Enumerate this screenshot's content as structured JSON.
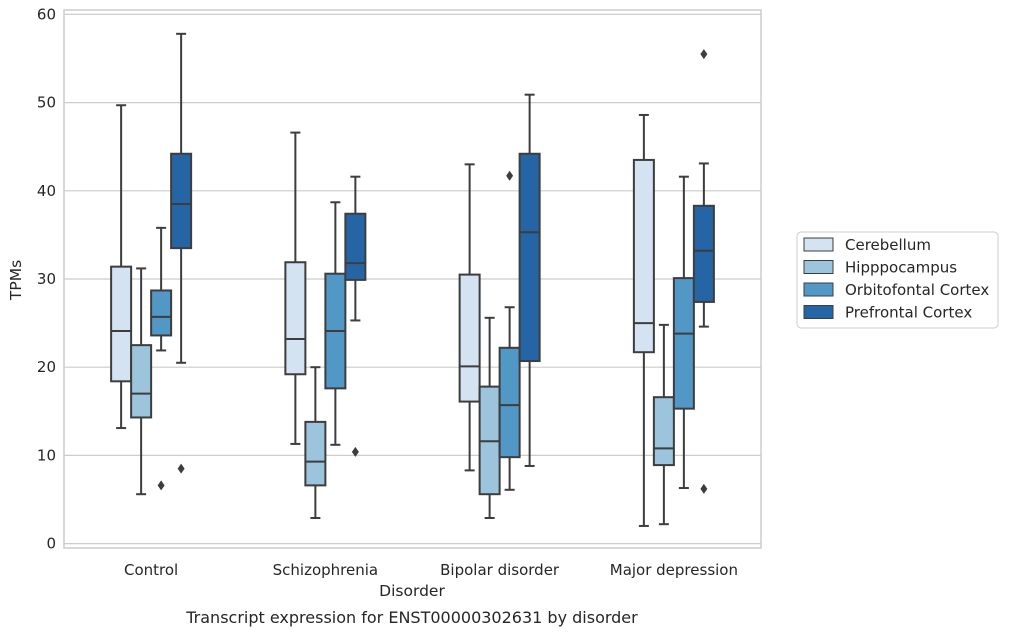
{
  "caption": "Transcript expression for ENST00000302631 by disorder",
  "chart_data": {
    "type": "box",
    "xlabel": "Disorder",
    "ylabel": "TPMs",
    "ylim": [
      -0.5,
      60.5
    ],
    "yticks": [
      0,
      10,
      20,
      30,
      40,
      50,
      60
    ],
    "grid": "horizontal",
    "legend_position": "right",
    "categories": [
      "Control",
      "Schizophrenia",
      "Bipolar disorder",
      "Major depression"
    ],
    "series": [
      {
        "name": "Cerebellum",
        "color": "#d3e3f1",
        "boxes": [
          {
            "whisker_low": 13.1,
            "q1": 18.4,
            "median": 24.1,
            "q3": 31.4,
            "whisker_high": 49.7,
            "outliers": []
          },
          {
            "whisker_low": 11.3,
            "q1": 19.2,
            "median": 23.2,
            "q3": 31.9,
            "whisker_high": 46.6,
            "outliers": []
          },
          {
            "whisker_low": 8.3,
            "q1": 16.1,
            "median": 20.1,
            "q3": 30.5,
            "whisker_high": 43.0,
            "outliers": []
          },
          {
            "whisker_low": 2.0,
            "q1": 21.7,
            "median": 25.0,
            "q3": 43.5,
            "whisker_high": 48.6,
            "outliers": []
          }
        ]
      },
      {
        "name": "Hipppocampus",
        "color": "#9cc4dd",
        "boxes": [
          {
            "whisker_low": 5.6,
            "q1": 14.3,
            "median": 17.0,
            "q3": 22.5,
            "whisker_high": 31.2,
            "outliers": []
          },
          {
            "whisker_low": 2.9,
            "q1": 6.6,
            "median": 9.3,
            "q3": 13.8,
            "whisker_high": 20.0,
            "outliers": []
          },
          {
            "whisker_low": 2.9,
            "q1": 5.6,
            "median": 11.6,
            "q3": 17.8,
            "whisker_high": 25.6,
            "outliers": []
          },
          {
            "whisker_low": 2.2,
            "q1": 8.9,
            "median": 10.8,
            "q3": 16.6,
            "whisker_high": 24.8,
            "outliers": []
          }
        ]
      },
      {
        "name": "Orbitofontal Cortex",
        "color": "#5298c6",
        "boxes": [
          {
            "whisker_low": 21.9,
            "q1": 23.6,
            "median": 25.7,
            "q3": 28.7,
            "whisker_high": 35.8,
            "outliers": [
              6.6
            ]
          },
          {
            "whisker_low": 11.2,
            "q1": 17.6,
            "median": 24.1,
            "q3": 30.6,
            "whisker_high": 38.7,
            "outliers": []
          },
          {
            "whisker_low": 6.1,
            "q1": 9.8,
            "median": 15.7,
            "q3": 22.2,
            "whisker_high": 26.8,
            "outliers": [
              41.7
            ]
          },
          {
            "whisker_low": 6.3,
            "q1": 15.3,
            "median": 23.8,
            "q3": 30.1,
            "whisker_high": 41.6,
            "outliers": []
          }
        ]
      },
      {
        "name": "Prefrontal Cortex",
        "color": "#2565a6",
        "boxes": [
          {
            "whisker_low": 20.5,
            "q1": 33.5,
            "median": 38.5,
            "q3": 44.2,
            "whisker_high": 57.8,
            "outliers": [
              8.5
            ]
          },
          {
            "whisker_low": 25.3,
            "q1": 29.9,
            "median": 31.8,
            "q3": 37.4,
            "whisker_high": 41.6,
            "outliers": [
              10.4
            ]
          },
          {
            "whisker_low": 8.8,
            "q1": 20.7,
            "median": 35.3,
            "q3": 44.2,
            "whisker_high": 50.9,
            "outliers": []
          },
          {
            "whisker_low": 24.6,
            "q1": 27.4,
            "median": 33.2,
            "q3": 38.3,
            "whisker_high": 43.1,
            "outliers": [
              6.2,
              55.5
            ]
          }
        ]
      }
    ]
  }
}
